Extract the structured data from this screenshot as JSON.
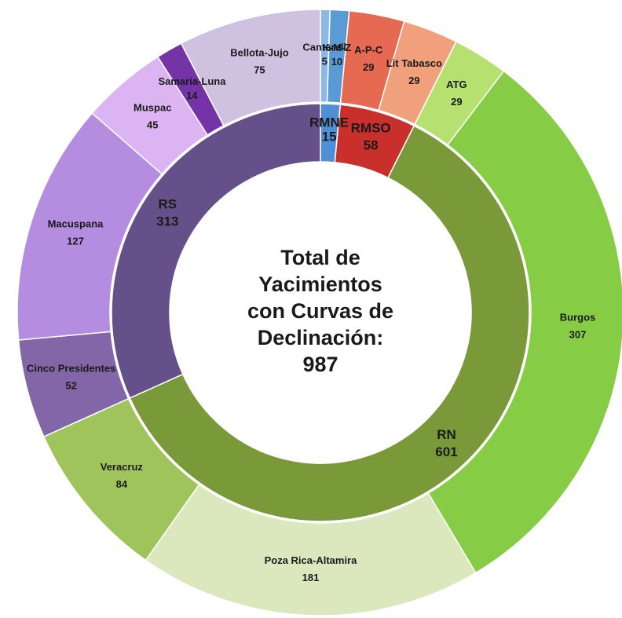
{
  "chart_data": {
    "type": "sunburst",
    "center_text": [
      "Total de",
      "Yacimientos",
      "con Curvas de",
      "Declinación:"
    ],
    "total": 987,
    "inner": {
      "categories": [
        "RMNE",
        "RMSO",
        "RN",
        "RS"
      ],
      "values": [
        15,
        58,
        601,
        313
      ],
      "colors": [
        "#4f8fd6",
        "#c9302c",
        "#7a9a3a",
        "#65508a"
      ]
    },
    "outer": {
      "categories": [
        "Cantarell",
        "K-M-Z",
        "A-P-C",
        "Lit Tabasco",
        "ATG",
        "Burgos",
        "Poza Rica-Altamira",
        "Veracruz",
        "Cinco Presidentes",
        "Macuspana",
        "Muspac",
        "Samaria-Luna",
        "Bellota-Jujo"
      ],
      "values": [
        5,
        10,
        29,
        29,
        29,
        307,
        181,
        84,
        52,
        127,
        45,
        14,
        75
      ],
      "colors": [
        "#8cb8e8",
        "#5b9bd5",
        "#e66a52",
        "#f0a07a",
        "#b6e070",
        "#86cc45",
        "#dbe8bd",
        "#9fc45c",
        "#8266a8",
        "#b48ce0",
        "#dcb4f2",
        "#7434a8",
        "#cfc1e0"
      ]
    }
  }
}
